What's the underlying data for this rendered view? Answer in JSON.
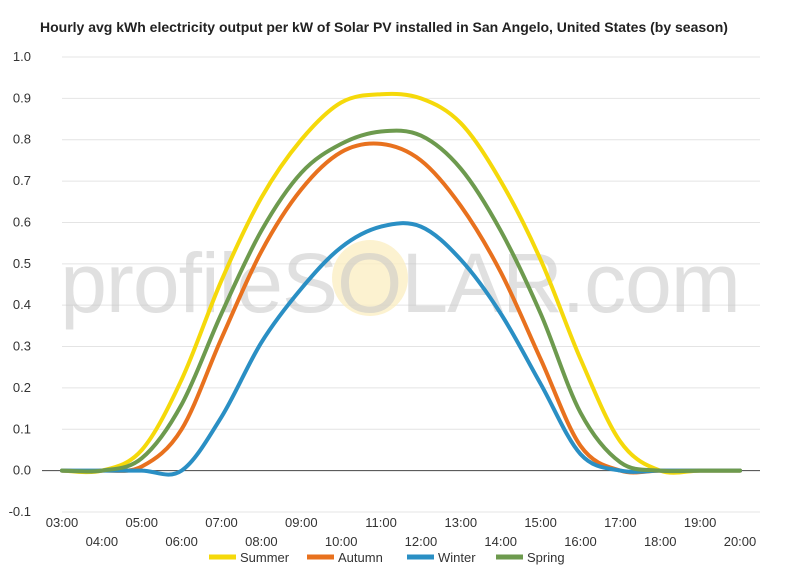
{
  "chart_data": {
    "type": "line",
    "title": "Hourly avg kWh electricity output per kW of Solar PV installed in San Angelo, United States (by season)",
    "xlabel": "",
    "ylabel": "",
    "x": [
      "03:00",
      "04:00",
      "05:00",
      "06:00",
      "07:00",
      "08:00",
      "09:00",
      "10:00",
      "11:00",
      "12:00",
      "13:00",
      "14:00",
      "15:00",
      "16:00",
      "17:00",
      "18:00",
      "19:00",
      "20:00"
    ],
    "ylim": [
      -0.1,
      1.0
    ],
    "yticks": [
      "-0.1",
      "0.0",
      "0.1",
      "0.2",
      "0.3",
      "0.4",
      "0.5",
      "0.6",
      "0.7",
      "0.8",
      "0.9",
      "1.0"
    ],
    "grid": true,
    "legend_position": "bottom",
    "series": [
      {
        "name": "Summer",
        "color": "#f5d90a",
        "values": [
          0.0,
          0.0,
          0.05,
          0.22,
          0.46,
          0.66,
          0.8,
          0.89,
          0.91,
          0.9,
          0.84,
          0.7,
          0.51,
          0.27,
          0.07,
          0.0,
          0.0,
          0.0
        ]
      },
      {
        "name": "Autumn",
        "color": "#e8711e",
        "values": [
          0.0,
          0.0,
          0.01,
          0.1,
          0.32,
          0.53,
          0.68,
          0.77,
          0.79,
          0.75,
          0.64,
          0.48,
          0.27,
          0.06,
          0.0,
          0.0,
          0.0,
          0.0
        ]
      },
      {
        "name": "Winter",
        "color": "#2a8fc4",
        "values": [
          0.0,
          0.0,
          0.0,
          0.0,
          0.13,
          0.31,
          0.44,
          0.54,
          0.59,
          0.59,
          0.51,
          0.38,
          0.21,
          0.04,
          0.0,
          0.0,
          0.0,
          0.0
        ]
      },
      {
        "name": "Spring",
        "color": "#6d9a4e",
        "values": [
          0.0,
          0.0,
          0.03,
          0.16,
          0.38,
          0.58,
          0.72,
          0.79,
          0.82,
          0.81,
          0.73,
          0.58,
          0.38,
          0.14,
          0.02,
          0.0,
          0.0,
          0.0
        ]
      }
    ],
    "watermark": "profileSOLAR.com"
  }
}
